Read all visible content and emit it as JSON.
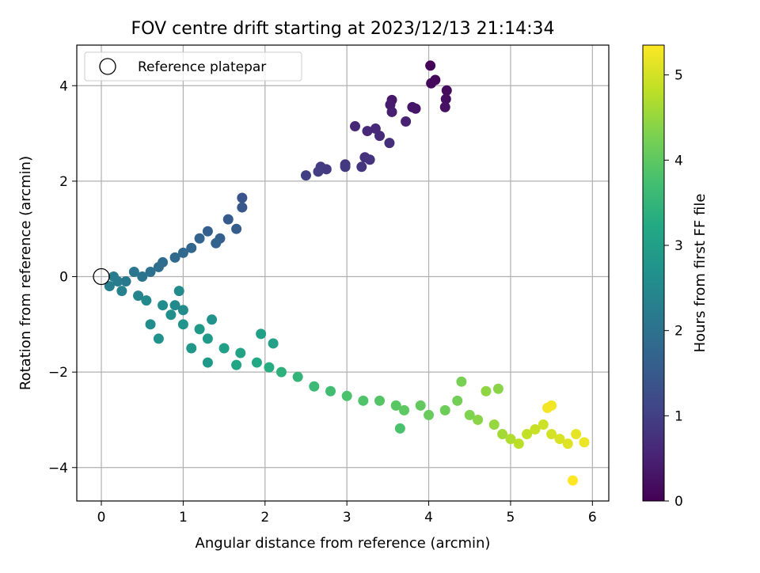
{
  "chart_data": {
    "type": "scatter",
    "title": "FOV centre drift starting at 2023/12/13 21:14:34",
    "xlabel": "Angular distance from reference (arcmin)",
    "ylabel": "Rotation from reference (arcmin)",
    "xlim": [
      -0.3,
      6.2
    ],
    "ylim": [
      -4.7,
      4.85
    ],
    "xticks": [
      0,
      1,
      2,
      3,
      4,
      5,
      6
    ],
    "xtick_labels": [
      "0",
      "1",
      "2",
      "3",
      "4",
      "5",
      "6"
    ],
    "yticks": [
      -4,
      -2,
      0,
      2,
      4
    ],
    "ytick_labels": [
      "−4",
      "−2",
      "0",
      "2",
      "4"
    ],
    "grid": true,
    "legend": {
      "placement": "upper-left",
      "entries": [
        {
          "label": "Reference platepar",
          "marker": "open-circle"
        }
      ]
    },
    "colorbar": {
      "label": "Hours from first FF file",
      "colormap": "viridis",
      "range": [
        0,
        5.35
      ],
      "ticks": [
        0,
        1,
        2,
        3,
        4,
        5
      ],
      "tick_labels": [
        "0",
        "1",
        "2",
        "3",
        "4",
        "5"
      ]
    },
    "reference_point": {
      "x": 0,
      "y": 0
    },
    "series": [
      {
        "points": [
          [
            4.02,
            4.42
          ],
          [
            4.08,
            4.12
          ],
          [
            4.22,
            3.9
          ],
          [
            4.21,
            3.72
          ],
          [
            4.2,
            3.55
          ],
          [
            4.03,
            4.05
          ],
          [
            3.55,
            3.7
          ],
          [
            3.53,
            3.6
          ],
          [
            3.55,
            3.45
          ],
          [
            3.84,
            3.52
          ],
          [
            3.8,
            3.55
          ],
          [
            3.72,
            3.25
          ],
          [
            3.1,
            3.15
          ],
          [
            3.25,
            3.05
          ],
          [
            3.35,
            3.1
          ],
          [
            3.4,
            2.95
          ],
          [
            3.52,
            2.8
          ],
          [
            3.22,
            2.5
          ],
          [
            3.28,
            2.45
          ],
          [
            3.18,
            2.3
          ],
          [
            2.98,
            2.35
          ],
          [
            2.75,
            2.25
          ],
          [
            2.68,
            2.3
          ],
          [
            2.65,
            2.2
          ],
          [
            2.5,
            2.12
          ],
          [
            2.98,
            2.3
          ],
          [
            1.72,
            1.65
          ],
          [
            1.72,
            1.45
          ],
          [
            1.55,
            1.2
          ],
          [
            1.65,
            1.0
          ],
          [
            1.45,
            0.8
          ],
          [
            1.3,
            0.95
          ],
          [
            1.4,
            0.7
          ],
          [
            1.2,
            0.8
          ],
          [
            1.1,
            0.6
          ],
          [
            1.0,
            0.5
          ],
          [
            0.9,
            0.4
          ],
          [
            0.75,
            0.3
          ],
          [
            0.7,
            0.2
          ],
          [
            0.6,
            0.1
          ],
          [
            0.5,
            0.0
          ],
          [
            0.4,
            0.1
          ],
          [
            0.3,
            -0.1
          ],
          [
            0.2,
            -0.1
          ],
          [
            0.15,
            0.0
          ],
          [
            0.1,
            -0.2
          ],
          [
            0.25,
            -0.3
          ],
          [
            0.45,
            -0.4
          ],
          [
            0.55,
            -0.5
          ],
          [
            0.75,
            -0.6
          ],
          [
            0.85,
            -0.8
          ],
          [
            1.0,
            -1.0
          ],
          [
            1.2,
            -1.1
          ],
          [
            1.3,
            -1.3
          ],
          [
            1.5,
            -1.5
          ],
          [
            1.7,
            -1.6
          ],
          [
            1.9,
            -1.8
          ],
          [
            2.05,
            -1.9
          ],
          [
            2.2,
            -2.0
          ],
          [
            2.4,
            -2.1
          ],
          [
            2.6,
            -2.3
          ],
          [
            2.8,
            -2.4
          ],
          [
            3.0,
            -2.5
          ],
          [
            3.2,
            -2.6
          ],
          [
            3.4,
            -2.6
          ],
          [
            3.6,
            -2.7
          ],
          [
            3.7,
            -2.8
          ],
          [
            3.9,
            -2.7
          ],
          [
            4.0,
            -2.9
          ],
          [
            4.2,
            -2.8
          ],
          [
            4.35,
            -2.6
          ],
          [
            4.4,
            -2.2
          ],
          [
            4.5,
            -2.9
          ],
          [
            4.6,
            -3.0
          ],
          [
            4.8,
            -3.1
          ],
          [
            4.9,
            -3.3
          ],
          [
            5.0,
            -3.4
          ],
          [
            5.1,
            -3.5
          ],
          [
            5.2,
            -3.3
          ],
          [
            5.3,
            -3.2
          ],
          [
            5.4,
            -3.1
          ],
          [
            5.5,
            -3.3
          ],
          [
            5.6,
            -3.4
          ],
          [
            5.7,
            -3.5
          ],
          [
            5.8,
            -3.3
          ],
          [
            5.9,
            -3.47
          ],
          [
            5.76,
            -4.27
          ],
          [
            5.5,
            -2.7
          ],
          [
            5.45,
            -2.75
          ],
          [
            4.85,
            -2.35
          ],
          [
            4.7,
            -2.4
          ],
          [
            3.65,
            -3.18
          ],
          [
            2.1,
            -1.4
          ],
          [
            1.95,
            -1.2
          ],
          [
            1.0,
            -0.7
          ],
          [
            0.9,
            -0.6
          ],
          [
            1.35,
            -0.9
          ],
          [
            1.1,
            -1.5
          ],
          [
            1.3,
            -1.8
          ],
          [
            1.65,
            -1.85
          ],
          [
            0.7,
            -1.3
          ],
          [
            0.6,
            -1.0
          ],
          [
            0.95,
            -0.3
          ]
        ],
        "hours": [
          0.05,
          0.1,
          0.15,
          0.2,
          0.25,
          0.12,
          0.35,
          0.4,
          0.45,
          0.3,
          0.32,
          0.5,
          0.6,
          0.62,
          0.58,
          0.65,
          0.7,
          0.75,
          0.78,
          0.8,
          0.85,
          0.9,
          0.92,
          0.95,
          1.0,
          0.88,
          1.4,
          1.45,
          1.5,
          1.55,
          1.6,
          1.62,
          1.68,
          1.72,
          1.76,
          1.8,
          1.85,
          1.9,
          1.95,
          2.0,
          2.05,
          2.1,
          2.15,
          2.2,
          2.25,
          2.3,
          2.35,
          2.4,
          2.5,
          2.6,
          2.65,
          2.75,
          2.85,
          2.9,
          3.0,
          3.1,
          3.2,
          3.3,
          3.4,
          3.5,
          3.6,
          3.7,
          3.8,
          3.85,
          3.9,
          3.95,
          4.0,
          4.05,
          4.1,
          4.15,
          4.2,
          4.25,
          4.3,
          4.4,
          4.5,
          4.6,
          4.7,
          4.8,
          4.85,
          4.9,
          4.95,
          5.0,
          5.05,
          5.1,
          5.15,
          5.2,
          5.35,
          5.25,
          5.28,
          4.4,
          4.45,
          3.8,
          3.05,
          3.0,
          2.55,
          2.5,
          2.7,
          2.8,
          2.85,
          3.15,
          2.7,
          2.6,
          2.55
        ]
      }
    ]
  }
}
